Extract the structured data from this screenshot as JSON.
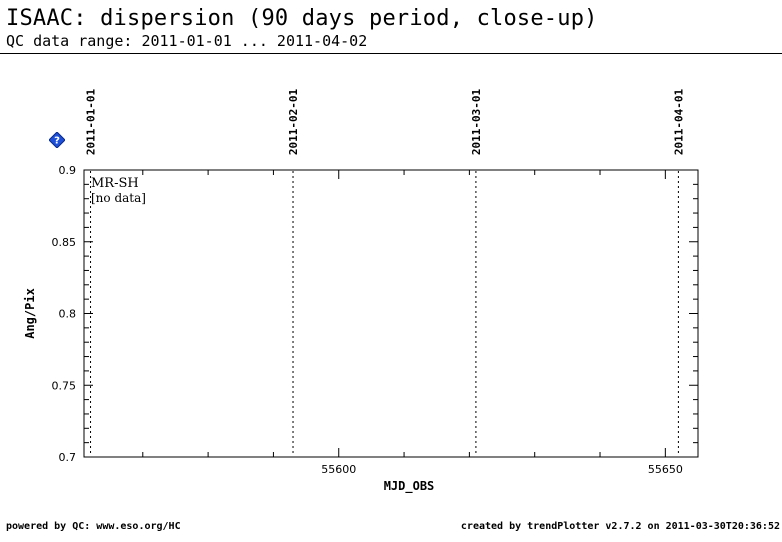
{
  "header": {
    "title": "ISAAC: dispersion (90 days period, close-up)",
    "subtitle": "QC data range: 2011-01-01 ... 2011-04-02"
  },
  "footer": {
    "left": "powered by QC: www.eso.org/HC",
    "right": "created by trendPlotter v2.7.2 on 2011-03-30T20:36:52"
  },
  "help_icon": "question-diamond-icon",
  "chart_data": {
    "type": "scatter",
    "xlabel": "MJD_OBS",
    "ylabel": "Ang/Pix",
    "xlim": [
      55561,
      55655
    ],
    "ylim": [
      0.7,
      0.9
    ],
    "x_major_ticks": [
      55600,
      55650
    ],
    "x_minor_step": 10,
    "y_ticks": [
      0.7,
      0.75,
      0.8,
      0.85,
      0.9
    ],
    "y_tick_labels": [
      "0.7",
      "0.75",
      "0.8",
      "0.85",
      "0.9"
    ],
    "date_markers": [
      {
        "label": "2011-01-01",
        "mjd": 55562
      },
      {
        "label": "2011-02-01",
        "mjd": 55593
      },
      {
        "label": "2011-03-01",
        "mjd": 55621
      },
      {
        "label": "2011-04-01",
        "mjd": 55652
      }
    ],
    "series": [
      {
        "name": "MR-SH",
        "values": []
      }
    ],
    "annotation": "[no data]",
    "grid": false
  }
}
